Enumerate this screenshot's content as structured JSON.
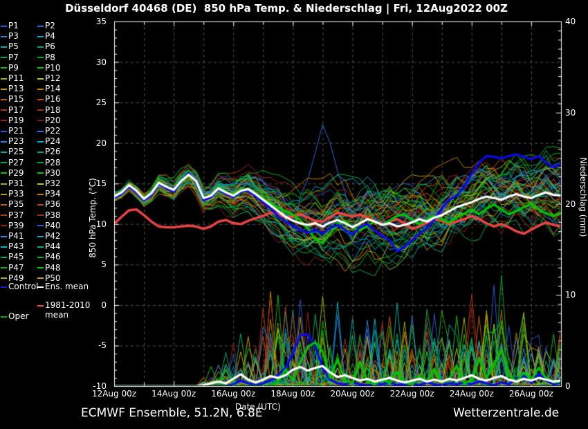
{
  "title": "Düsseldorf 40468 (DE)  850 hPa Temp. & Niederschlag | Fri, 12Aug2022 00Z",
  "footer": {
    "left": "ECMWF Ensemble, 51.2N, 6.8E",
    "right": "Wetterzentrale.de"
  },
  "legend": {
    "member_labels": [
      "P1",
      "P2",
      "P3",
      "P4",
      "P5",
      "P6",
      "P7",
      "P8",
      "P9",
      "P10",
      "P11",
      "P12",
      "P13",
      "P14",
      "P15",
      "P16",
      "P17",
      "P18",
      "P19",
      "P20",
      "P21",
      "P22",
      "P23",
      "P24",
      "P25",
      "P26",
      "P27",
      "P28",
      "P29",
      "P30",
      "P31",
      "P32",
      "P33",
      "P34",
      "P35",
      "P36",
      "P37",
      "P38",
      "P39",
      "P40",
      "P41",
      "P42",
      "P43",
      "P44",
      "P45",
      "P46",
      "P47",
      "P48",
      "P49",
      "P50"
    ],
    "member_colors": [
      "#2b55cc",
      "#2e6bd8",
      "#2f7fd8",
      "#00a8cc",
      "#00a89e",
      "#00a878",
      "#00a855",
      "#00aa33",
      "#12b412",
      "#00cc00",
      "#9cb400",
      "#c4c400",
      "#c49c00",
      "#c47e00",
      "#c46000",
      "#bc4a0c",
      "#b03a10",
      "#a82c14",
      "#962016",
      "#7e1a12",
      "#2b55cc",
      "#2e6bd8",
      "#2f7fd8",
      "#00a8cc",
      "#00a89e",
      "#00a878",
      "#00a855",
      "#00aa33",
      "#12b412",
      "#00cc00",
      "#9cb400",
      "#c4c400",
      "#c49c00",
      "#c47e00",
      "#c46000",
      "#bc4a0c",
      "#b03a10",
      "#a82c14",
      "#962016",
      "#2b55cc",
      "#3b8ae0",
      "#14a0d0",
      "#00b4c8",
      "#00ac8c",
      "#00aa66",
      "#00b040",
      "#0cb81c",
      "#00cc00",
      "#9cb400",
      "#c4a000"
    ],
    "control": {
      "label": "Control",
      "color": "#1515cc"
    },
    "ens_mean": {
      "label": "Ens. mean",
      "color": "#ffffff"
    },
    "clim_mean": {
      "label_line1": "1981-2010",
      "label_line2": "mean",
      "color": "#f04848"
    },
    "oper": {
      "label": "Oper",
      "color": "#00aa00"
    }
  },
  "chart_data": {
    "type": "line",
    "title": "Düsseldorf 40468 (DE) 850 hPa Temp. & Niederschlag | Fri, 12Aug2022 00Z",
    "xlabel": "Date (UTC)",
    "ylabel_left": "850 hPa Temp. (°C)",
    "ylabel_right": "Niederschlag (mm)",
    "x_tick_labels": [
      "12Aug 00z",
      "14Aug 00z",
      "16Aug 00z",
      "18Aug 00z",
      "20Aug 00z",
      "22Aug 00z",
      "24Aug 00z",
      "26Aug 00z"
    ],
    "x_tick_days": [
      0,
      2,
      4,
      6,
      8,
      10,
      12,
      14
    ],
    "x_range_days": [
      0,
      15
    ],
    "x_step_days": 0.25,
    "ylim_left": [
      -10,
      35
    ],
    "yticks_left": [
      -10,
      -5,
      0,
      5,
      10,
      15,
      20,
      25,
      30,
      35
    ],
    "ylim_right": [
      0,
      40
    ],
    "yticks_right": [
      0,
      10,
      20,
      30,
      40
    ],
    "grid": "dashed gray, vertical each day, horizontal each 5 °C",
    "series_colors": {
      "ens_mean": "#ffffff",
      "control": "#0a0ae8",
      "oper": "#00c400",
      "clim_mean": "#e84545"
    },
    "series": {
      "ens_mean_temp": [
        13.4,
        13.9,
        14.8,
        14.1,
        13.1,
        13.8,
        15.1,
        14.6,
        14.2,
        15.3,
        16.1,
        15.3,
        13.2,
        13.5,
        14.4,
        13.9,
        13.5,
        14.1,
        14.3,
        13.7,
        13.0,
        12.3,
        11.6,
        10.9,
        10.4,
        10.1,
        9.9,
        10.1,
        9.7,
        10.2,
        10.5,
        10.1,
        9.6,
        10.1,
        10.6,
        10.3,
        9.9,
        10.1,
        9.7,
        9.9,
        10.2,
        10.6,
        10.3,
        10.8,
        11.1,
        11.6,
        12.1,
        12.4,
        12.7,
        13.1,
        13.4,
        13.2,
        13.0,
        13.4,
        13.7,
        13.4,
        13.2,
        13.6,
        13.9,
        13.6,
        13.5
      ],
      "control_temp": [
        13.2,
        13.7,
        14.6,
        13.9,
        12.9,
        13.6,
        15.0,
        14.4,
        14.0,
        15.2,
        16.3,
        15.1,
        12.9,
        13.3,
        14.3,
        13.7,
        13.3,
        14.0,
        14.1,
        13.4,
        12.7,
        11.9,
        11.0,
        10.3,
        9.8,
        9.3,
        8.9,
        9.3,
        8.8,
        9.5,
        9.9,
        9.3,
        8.7,
        9.6,
        10.0,
        9.2,
        8.5,
        8.0,
        6.6,
        7.2,
        8.0,
        8.8,
        9.5,
        10.6,
        11.9,
        13.0,
        13.5,
        14.6,
        16.2,
        17.6,
        18.4,
        18.3,
        18.1,
        18.4,
        18.6,
        18.3,
        18.0,
        18.4,
        17.6,
        17.0,
        17.4
      ],
      "oper_temp": [
        13.3,
        13.8,
        14.7,
        14.0,
        13.0,
        13.7,
        15.2,
        14.5,
        14.1,
        15.1,
        16.0,
        15.2,
        13.1,
        13.4,
        14.5,
        14.0,
        13.6,
        14.2,
        14.4,
        13.8,
        13.2,
        12.6,
        12.0,
        11.6,
        11.2,
        10.5,
        9.4,
        8.2,
        7.6,
        8.8,
        10.0,
        10.4,
        9.6,
        9.2,
        9.8,
        10.3,
        9.9,
        10.4,
        11.0,
        11.2,
        10.5,
        10.0,
        10.6,
        11.0,
        10.6,
        10.2,
        10.8,
        11.3,
        11.8,
        11.2,
        11.9,
        12.4,
        11.8,
        11.2,
        11.6,
        12.1,
        12.5,
        11.8,
        11.3,
        11.0,
        11.3
      ],
      "clim_mean_temp": [
        10.0,
        10.9,
        11.7,
        11.8,
        11.1,
        10.3,
        9.7,
        9.6,
        9.6,
        9.7,
        9.8,
        9.7,
        9.4,
        9.7,
        10.3,
        10.5,
        10.1,
        10.0,
        10.4,
        10.7,
        11.0,
        11.4,
        11.2,
        10.8,
        10.9,
        11.2,
        10.8,
        10.4,
        10.3,
        10.9,
        11.4,
        11.2,
        10.9,
        11.2,
        10.7,
        10.3,
        10.0,
        10.3,
        10.6,
        10.1,
        9.4,
        9.7,
        10.2,
        10.6,
        10.4,
        10.0,
        10.3,
        10.6,
        11.0,
        10.6,
        10.1,
        9.7,
        10.0,
        9.6,
        9.1,
        8.8,
        9.3,
        9.8,
        10.2,
        9.9,
        9.7
      ],
      "ens_mean_precip": [
        0,
        0,
        0,
        0,
        0,
        0,
        0,
        0,
        0,
        0,
        0,
        0,
        0.1,
        0.3,
        0.5,
        0.3,
        0.8,
        1.3,
        0.7,
        0.4,
        0.7,
        1.1,
        0.9,
        1.2,
        1.8,
        2.1,
        1.7,
        2.0,
        2.2,
        1.5,
        1.0,
        1.2,
        0.9,
        0.6,
        0.8,
        0.5,
        0.7,
        0.9,
        0.6,
        0.4,
        0.6,
        0.8,
        0.5,
        0.7,
        0.5,
        0.8,
        0.6,
        0.9,
        1.2,
        0.8,
        0.6,
        0.9,
        1.1,
        0.7,
        0.5,
        0.8,
        0.6,
        0.9,
        0.7,
        0.5,
        0.6
      ],
      "control_precip": [
        0,
        0,
        0,
        0,
        0,
        0,
        0,
        0,
        0,
        0,
        0,
        0,
        0,
        0,
        0,
        0,
        0.2,
        0.6,
        0.3,
        0.1,
        0.3,
        0.6,
        1.2,
        2.0,
        3.6,
        5.6,
        5.7,
        4.4,
        2.0,
        0.7,
        0.3,
        0.2,
        0.4,
        0.2,
        0.1,
        0.3,
        0.2,
        0.4,
        0.1,
        0.2,
        0.3,
        0.1,
        0.4,
        0.2,
        0.1,
        0.3,
        0.2,
        0.4,
        0.2,
        0.5,
        0.3,
        0.1,
        0.4,
        0.2,
        0.8,
        1.2,
        0.3,
        1.4,
        0.6,
        0.2,
        0.4
      ],
      "oper_precip": [
        0,
        0,
        0,
        0,
        0,
        0,
        0,
        0,
        0,
        0,
        0,
        0,
        0,
        0,
        0,
        0,
        0,
        0,
        0,
        0,
        0,
        0,
        0.4,
        1.8,
        0.6,
        2.6,
        4.3,
        4.8,
        3.8,
        0.9,
        2.9,
        0.6,
        0.3,
        2.7,
        0.5,
        0.2,
        0.8,
        0.3,
        1.6,
        0.4,
        0.2,
        1.1,
        0.5,
        1.9,
        0.4,
        0.8,
        2.2,
        0.3,
        0.6,
        3.1,
        0.9,
        2.4,
        4.0,
        1.2,
        0.5,
        1.5,
        0.7,
        2.0,
        0.9,
        0.4,
        0.5
      ]
    },
    "ensemble": {
      "count": 50,
      "temp_spread": [
        0.6,
        0.7,
        0.8,
        0.9,
        1.0,
        1.1,
        1.2,
        1.3,
        1.4,
        1.5,
        1.6,
        1.8,
        2.0,
        2.1,
        2.2,
        2.3,
        2.4,
        2.6,
        2.8,
        3.0,
        3.2,
        3.4,
        3.6,
        3.9,
        4.2,
        4.4,
        4.6,
        4.7,
        4.8,
        4.9,
        5.0,
        5.0,
        5.1,
        5.1,
        5.2,
        5.2,
        5.2,
        5.2,
        5.2,
        5.2,
        5.2,
        5.1,
        5.1,
        5.0,
        5.0,
        5.0,
        4.9,
        4.9,
        4.8,
        4.8,
        4.8,
        4.8,
        4.8,
        4.8,
        4.8,
        4.8,
        4.8,
        4.8,
        4.8,
        4.8,
        4.8
      ],
      "precip_spike_max": [
        0,
        0,
        0,
        0,
        0,
        0,
        0,
        0,
        0,
        0,
        0,
        0,
        2,
        3,
        3,
        4,
        6,
        9,
        9,
        8,
        10,
        12,
        12,
        13,
        13,
        13,
        12,
        12,
        12,
        11,
        10,
        10,
        10,
        9,
        9,
        9,
        9,
        10,
        11,
        12,
        13,
        12,
        11,
        12,
        12,
        11,
        12,
        11,
        12,
        11,
        12,
        13,
        14,
        12,
        12,
        12,
        12,
        11,
        10,
        11,
        10
      ],
      "outlier": {
        "member_index": 21,
        "start_index": 25,
        "temp_values": [
          13.5,
          15.5,
          18.8,
          22.3,
          20.0,
          16.5,
          14.0
        ]
      }
    }
  }
}
